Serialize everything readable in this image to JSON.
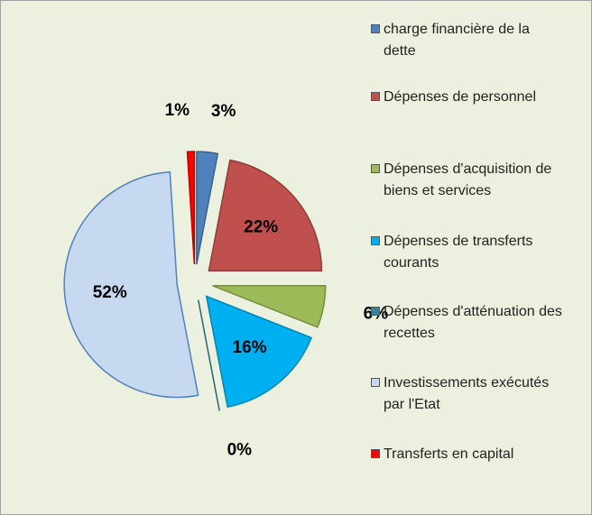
{
  "chart_data": {
    "type": "pie",
    "categories": [
      "charge financière de la dette",
      "Dépenses de personnel",
      "Dépenses d'acquisition de biens et services",
      "Dépenses de transferts courants",
      "Dépenses d'atténuation des recettes",
      "Investissements exécutés par l'Etat",
      "Transferts en capital"
    ],
    "values": [
      3,
      22,
      6,
      16,
      0,
      52,
      1
    ],
    "value_labels": [
      "3%",
      "22%",
      "6%",
      "16%",
      "0%",
      "52%",
      "1%"
    ],
    "colors": [
      "#4f81bd",
      "#c0504d",
      "#9bbb59",
      "#00b0f0",
      "#31859c",
      "#c6d9f1",
      "#ff0000"
    ],
    "legend": "right"
  }
}
